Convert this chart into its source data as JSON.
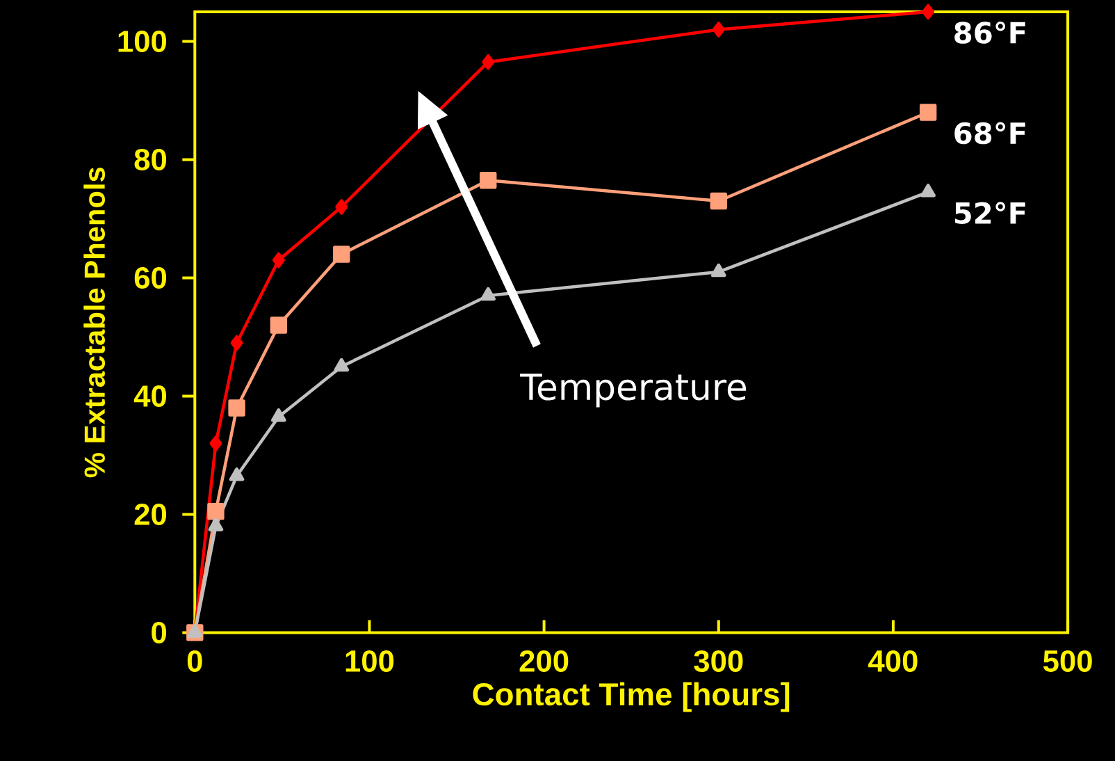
{
  "chart_data": {
    "type": "line",
    "xlabel": "Contact Time [hours]",
    "ylabel": "% Extractable Phenols",
    "x": [
      0,
      12,
      24,
      48,
      84,
      168,
      300,
      420
    ],
    "series": [
      {
        "name": "86°F",
        "color": "#ff0000",
        "marker": "diamond",
        "values": [
          0,
          32,
          49,
          63,
          72,
          96.5,
          102,
          105
        ]
      },
      {
        "name": "68°F",
        "color": "#ffa07a",
        "marker": "square",
        "values": [
          0,
          20.5,
          38,
          52,
          64,
          76.5,
          73,
          88
        ]
      },
      {
        "name": "52°F",
        "color": "#c0c0c0",
        "marker": "triangle",
        "values": [
          0,
          18,
          26.5,
          36.5,
          45,
          57,
          61,
          74.5
        ]
      }
    ],
    "xlim": [
      0,
      500
    ],
    "ylim": [
      0,
      105
    ],
    "xticks": [
      0,
      100,
      200,
      300,
      400,
      500
    ],
    "yticks": [
      0,
      20,
      40,
      60,
      80,
      100
    ],
    "grid": false,
    "legend": false,
    "annotations": [
      "Temperature"
    ]
  }
}
